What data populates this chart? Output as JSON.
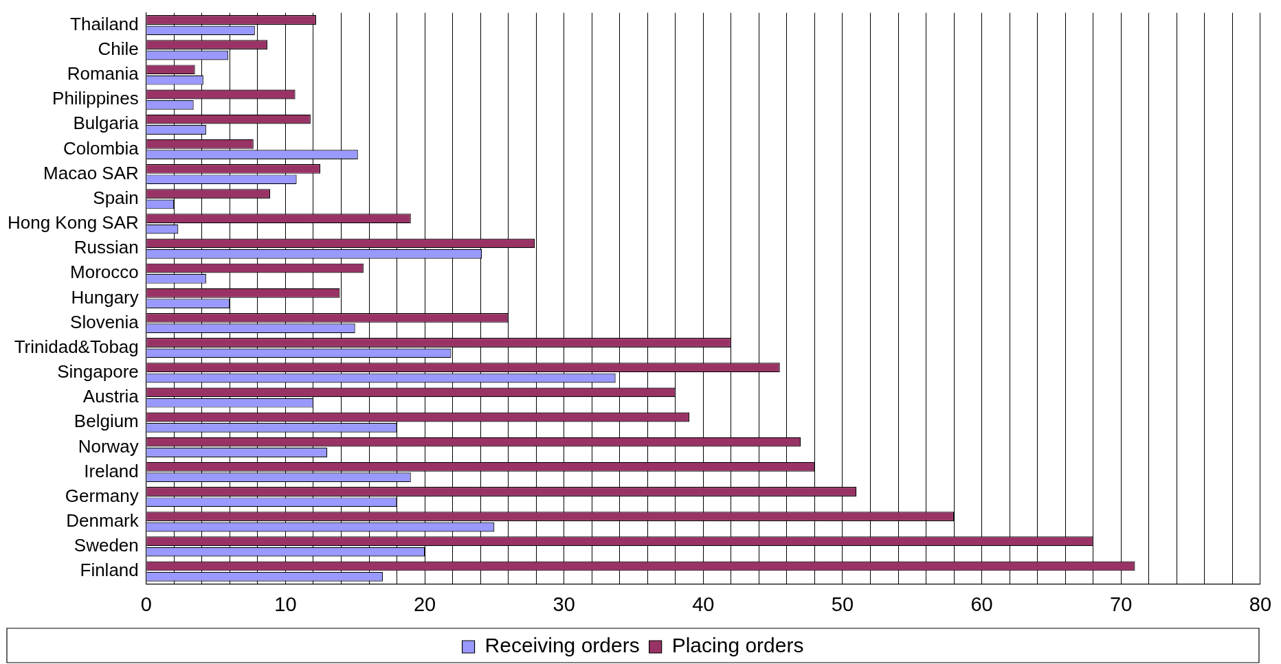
{
  "chart_data": {
    "type": "bar",
    "orientation": "horizontal",
    "categories": [
      "Thailand",
      "Chile",
      "Romania",
      "Philippines",
      "Bulgaria",
      "Colombia",
      "Macao SAR",
      "Spain",
      "Hong Kong SAR",
      "Russian",
      "Morocco",
      "Hungary",
      "Slovenia",
      "Trinidad&Tobag",
      "Singapore",
      "Austria",
      "Belgium",
      "Norway",
      "Ireland",
      "Germany",
      "Denmark",
      "Sweden",
      "Finland"
    ],
    "series": [
      {
        "name": "Receiving orders",
        "color": "#9999ff",
        "values": [
          7.8,
          5.9,
          4.1,
          3.4,
          4.3,
          15.2,
          10.8,
          2.0,
          2.3,
          24.1,
          4.3,
          6.0,
          15.0,
          21.9,
          33.7,
          12.0,
          18.0,
          13.0,
          19.0,
          18.0,
          25.0,
          20.0,
          17.0
        ]
      },
      {
        "name": "Placing orders",
        "color": "#993366",
        "values": [
          12.2,
          8.7,
          3.5,
          10.7,
          11.8,
          7.7,
          12.5,
          8.9,
          19.0,
          27.9,
          15.6,
          13.9,
          26.0,
          42.0,
          45.5,
          38.0,
          39.0,
          47.0,
          48.0,
          51.0,
          58.0,
          68.0,
          71.0
        ]
      }
    ],
    "xlim": [
      0,
      80
    ],
    "xticks": [
      0,
      {
        "value": 2,
        "label": null
      },
      {
        "value": 4,
        "label": null
      },
      {
        "value": 6,
        "label": null
      },
      {
        "value": 8,
        "label": null
      },
      10,
      {
        "value": 12,
        "label": null
      },
      {
        "value": 14,
        "label": null
      },
      {
        "value": 16,
        "label": null
      },
      {
        "value": 18,
        "label": null
      },
      20,
      {
        "value": 22,
        "label": null
      },
      {
        "value": 24,
        "label": null
      },
      {
        "value": 26,
        "label": null
      },
      {
        "value": 28,
        "label": null
      },
      30,
      {
        "value": 32,
        "label": null
      },
      {
        "value": 34,
        "label": null
      },
      {
        "value": 36,
        "label": null
      },
      {
        "value": 38,
        "label": null
      },
      40,
      {
        "value": 42,
        "label": null
      },
      {
        "value": 44,
        "label": null
      },
      {
        "value": 46,
        "label": null
      },
      {
        "value": 48,
        "label": null
      },
      50,
      {
        "value": 52,
        "label": null
      },
      {
        "value": 54,
        "label": null
      },
      {
        "value": 56,
        "label": null
      },
      {
        "value": 58,
        "label": null
      },
      60,
      {
        "value": 62,
        "label": null
      },
      {
        "value": 64,
        "label": null
      },
      {
        "value": 66,
        "label": null
      },
      {
        "value": 68,
        "label": null
      },
      70,
      {
        "value": 72,
        "label": null
      },
      {
        "value": 74,
        "label": null
      },
      {
        "value": 76,
        "label": null
      },
      {
        "value": 78,
        "label": null
      },
      80
    ],
    "grid": "x",
    "legend": "bottom"
  }
}
